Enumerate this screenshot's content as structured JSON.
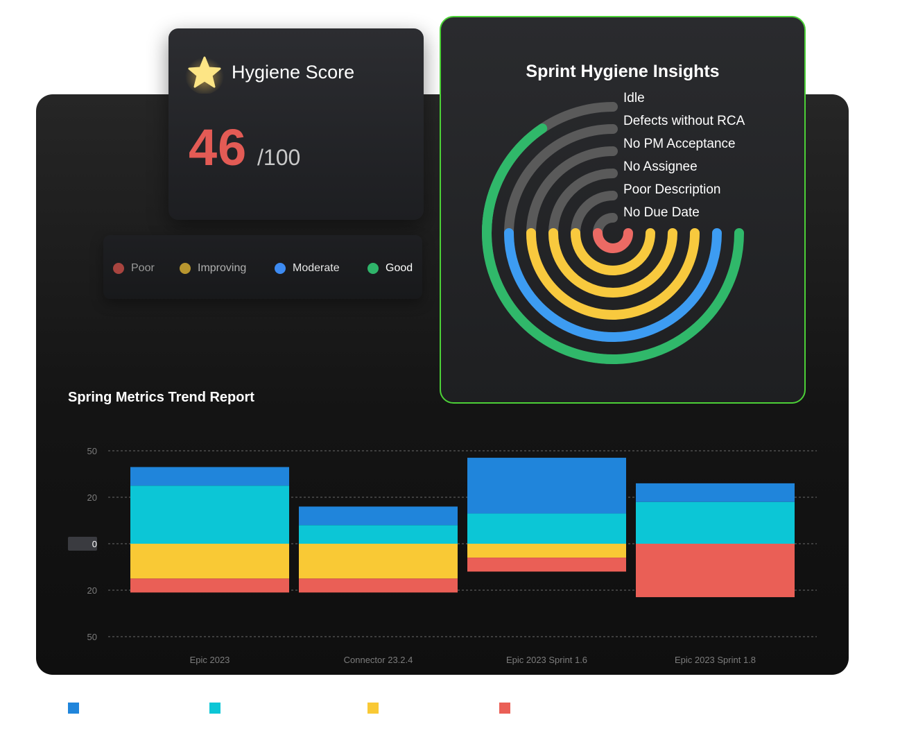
{
  "score_card": {
    "title": "Hygiene Score",
    "score": "46",
    "max": "/100",
    "icon": "star-icon",
    "score_color": "#e35b55"
  },
  "legend": {
    "items": [
      {
        "label": "Poor",
        "color": "#a8443f",
        "text_color": "#9a9a9a"
      },
      {
        "label": "Improving",
        "color": "#b8962f",
        "text_color": "#b0b0b0"
      },
      {
        "label": "Moderate",
        "color": "#3d8bf2",
        "text_color": "#e6e6e6"
      },
      {
        "label": "Good",
        "color": "#2fb46a",
        "text_color": "#ffffff"
      }
    ]
  },
  "insights": {
    "title": "Sprint Hygiene Insights",
    "rings": [
      {
        "label": "Idle",
        "color": "#30b86a",
        "progress": 0.56
      },
      {
        "label": "Defects without RCA",
        "color": "#3d9cf2",
        "progress": 0.5
      },
      {
        "label": "No PM Acceptance",
        "color": "#f8c93e",
        "progress": 0.5
      },
      {
        "label": "No Assignee",
        "color": "#f8c93e",
        "progress": 0.5
      },
      {
        "label": "Poor Description",
        "color": "#f8c93e",
        "progress": 0.5
      },
      {
        "label": "No Due Date",
        "color": "#ec6a64",
        "progress": 0.5
      }
    ],
    "track_color": "#5a5a5a",
    "border_color": "#4cd137"
  },
  "trend": {
    "title": "Spring Metrics Trend Report"
  },
  "chart_data": {
    "type": "bar",
    "stacked": true,
    "categories": [
      "Epic 2023",
      "Connector 23.2.4",
      "Epic 2023 Sprint 1.6",
      "Epic 2023 Sprint 1.8"
    ],
    "tick_labels": [
      "50",
      "20",
      "0",
      "20",
      "50"
    ],
    "highlighted_tick": "0",
    "grid": true,
    "series": [
      {
        "color": "#2085db",
        "values": [
          8,
          8,
          24,
          8
        ]
      },
      {
        "color": "#0cc6d6",
        "values": [
          25,
          8,
          13,
          18
        ]
      },
      {
        "color": "#f9c935",
        "values": [
          -15,
          -15,
          -6,
          0
        ]
      },
      {
        "color": "#ea5f56",
        "values": [
          -6,
          -6,
          -6,
          -23
        ]
      }
    ]
  },
  "bottom_legend": {
    "colors": [
      "#2085db",
      "#0cc6d6",
      "#f9c935",
      "#ea5f56"
    ]
  }
}
